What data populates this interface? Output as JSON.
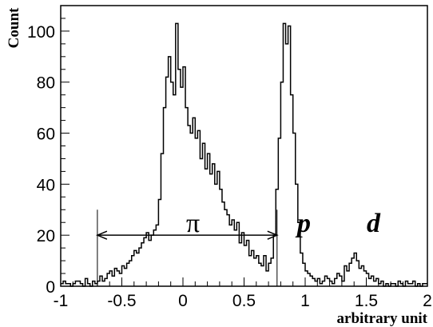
{
  "chart_data": {
    "type": "histogram",
    "title": "",
    "xlabel": "arbitrary unit",
    "ylabel": "Count",
    "xlim": [
      -1,
      2
    ],
    "ylim": [
      0,
      110
    ],
    "x_ticks": [
      -1,
      -0.5,
      0,
      0.5,
      1,
      1.5,
      2
    ],
    "x_tick_labels": [
      "-1",
      "-0.5",
      "0",
      "0.5",
      "1",
      "1.5",
      "2"
    ],
    "y_ticks": [
      0,
      20,
      40,
      60,
      80,
      100
    ],
    "y_tick_labels": [
      "0",
      "20",
      "40",
      "60",
      "80",
      "100"
    ],
    "bin_width": 0.02,
    "bin_start": -1,
    "counts": [
      1,
      2,
      1,
      1,
      0,
      1,
      2,
      2,
      1,
      0,
      3,
      1,
      0,
      2,
      1,
      2,
      4,
      2,
      3,
      5,
      6,
      4,
      7,
      6,
      5,
      8,
      7,
      9,
      10,
      12,
      14,
      13,
      15,
      17,
      19,
      21,
      18,
      20,
      22,
      24,
      34,
      52,
      70,
      82,
      90,
      80,
      75,
      103,
      85,
      78,
      86,
      70,
      63,
      60,
      66,
      58,
      61,
      50,
      56,
      46,
      52,
      44,
      48,
      40,
      45,
      38,
      33,
      30,
      28,
      24,
      26,
      22,
      25,
      17,
      21,
      16,
      18,
      12,
      14,
      11,
      12,
      9,
      8,
      12,
      6,
      9,
      11,
      20,
      38,
      58,
      80,
      103,
      95,
      102,
      75,
      60,
      40,
      25,
      13,
      9,
      6,
      5,
      4,
      3,
      2,
      3,
      1,
      2,
      4,
      3,
      2,
      1,
      3,
      5,
      4,
      2,
      8,
      6,
      9,
      11,
      13,
      10,
      7,
      8,
      6,
      5,
      3,
      4,
      2,
      3,
      1,
      2,
      0,
      1,
      0,
      1,
      1,
      0,
      2,
      1,
      0,
      2,
      1,
      1,
      2,
      0,
      1,
      0,
      1,
      1
    ],
    "annotations": {
      "pi": "π",
      "p": "p",
      "d": "d"
    },
    "pion_range": [
      -0.7,
      0.77
    ]
  }
}
